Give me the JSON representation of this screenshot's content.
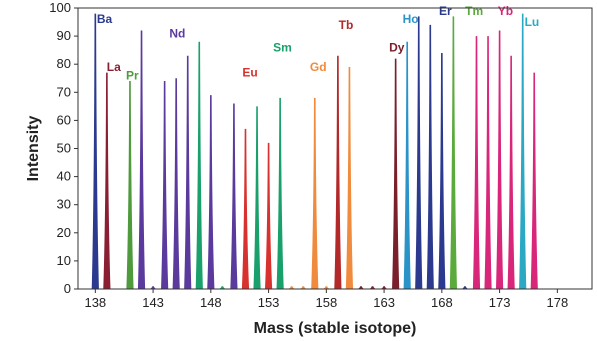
{
  "chart_data": {
    "type": "bar",
    "xlabel": "Mass (stable isotope)",
    "ylabel": "Intensity",
    "xlim": [
      136.5,
      181
    ],
    "ylim": [
      0,
      100
    ],
    "xticks": [
      138,
      143,
      148,
      153,
      158,
      163,
      168,
      173,
      178
    ],
    "yticks": [
      0,
      10,
      20,
      30,
      40,
      50,
      60,
      70,
      80,
      90,
      100
    ],
    "grid": false,
    "series": [
      {
        "name": "Ba",
        "color": "#2b3a8f",
        "label_pos": [
          138.8,
          96
        ],
        "points": [
          {
            "x": 138,
            "y": 98
          }
        ]
      },
      {
        "name": "La",
        "color": "#8a1f33",
        "label_pos": [
          139.6,
          79
        ],
        "points": [
          {
            "x": 139,
            "y": 77
          }
        ]
      },
      {
        "name": "Pr",
        "color": "#4f9a3c",
        "label_pos": [
          141.2,
          76
        ],
        "points": [
          {
            "x": 141,
            "y": 74
          }
        ]
      },
      {
        "name": "Nd",
        "color": "#5b3a9e",
        "label_pos": [
          145.1,
          91
        ],
        "points": [
          {
            "x": 142,
            "y": 92
          },
          {
            "x": 143,
            "y": 1
          },
          {
            "x": 144,
            "y": 74
          },
          {
            "x": 145,
            "y": 75
          },
          {
            "x": 146,
            "y": 83
          },
          {
            "x": 148,
            "y": 69
          },
          {
            "x": 150,
            "y": 66
          }
        ]
      },
      {
        "name": "Sm",
        "color": "#1aa06b",
        "label_pos": [
          154.2,
          86
        ],
        "points": [
          {
            "x": 147,
            "y": 88
          },
          {
            "x": 149,
            "y": 1
          },
          {
            "x": 152,
            "y": 65
          },
          {
            "x": 154,
            "y": 68
          }
        ]
      },
      {
        "name": "Eu",
        "color": "#d8322e",
        "label_pos": [
          151.4,
          77
        ],
        "points": [
          {
            "x": 151,
            "y": 57
          },
          {
            "x": 153,
            "y": 52
          }
        ]
      },
      {
        "name": "Gd",
        "color": "#f08a3c",
        "label_pos": [
          157.3,
          79
        ],
        "points": [
          {
            "x": 155,
            "y": 1
          },
          {
            "x": 156,
            "y": 1
          },
          {
            "x": 157,
            "y": 68
          },
          {
            "x": 158,
            "y": 1
          },
          {
            "x": 160,
            "y": 79
          }
        ]
      },
      {
        "name": "Tb",
        "color": "#b32828",
        "label_pos": [
          159.7,
          94
        ],
        "points": [
          {
            "x": 159,
            "y": 83
          }
        ]
      },
      {
        "name": "Dy",
        "color": "#7a1f2c",
        "label_pos": [
          164.1,
          86
        ],
        "points": [
          {
            "x": 161,
            "y": 1
          },
          {
            "x": 162,
            "y": 1
          },
          {
            "x": 163,
            "y": 1
          },
          {
            "x": 164,
            "y": 82
          }
        ]
      },
      {
        "name": "Ho",
        "color": "#2a93c8",
        "label_pos": [
          165.3,
          96
        ],
        "points": [
          {
            "x": 165,
            "y": 88
          }
        ]
      },
      {
        "name": "Er",
        "color": "#2b3a8f",
        "label_pos": [
          168.3,
          99
        ],
        "points": [
          {
            "x": 166,
            "y": 97
          },
          {
            "x": 167,
            "y": 94
          },
          {
            "x": 168,
            "y": 84
          },
          {
            "x": 170,
            "y": 1
          }
        ]
      },
      {
        "name": "Tm",
        "color": "#5aaa3c",
        "label_pos": [
          170.8,
          99
        ],
        "points": [
          {
            "x": 169,
            "y": 97
          }
        ]
      },
      {
        "name": "Yb",
        "color": "#d8267a",
        "label_pos": [
          173.5,
          99
        ],
        "points": [
          {
            "x": 171,
            "y": 90
          },
          {
            "x": 172,
            "y": 90
          },
          {
            "x": 173,
            "y": 92
          },
          {
            "x": 174,
            "y": 83
          },
          {
            "x": 176,
            "y": 77
          }
        ]
      },
      {
        "name": "Lu",
        "color": "#2aa8c4",
        "label_pos": [
          175.8,
          95
        ],
        "points": [
          {
            "x": 175,
            "y": 98
          }
        ]
      }
    ]
  }
}
